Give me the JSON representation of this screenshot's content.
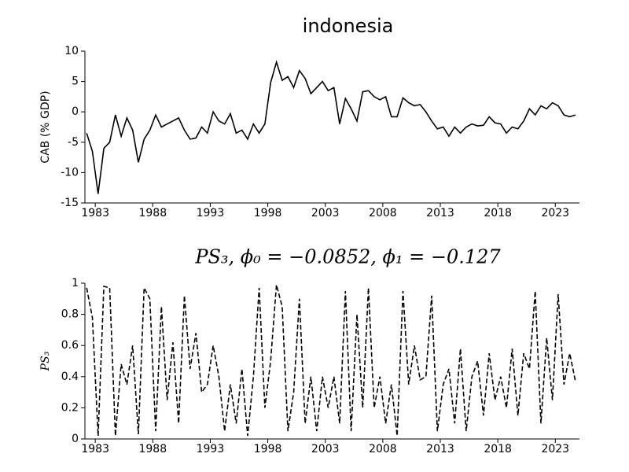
{
  "chart_data": [
    {
      "type": "line",
      "title": "indonesia",
      "ylabel": "CAB (% GDP)",
      "linestyle": "solid",
      "color": "#000000",
      "x": [
        1982.25,
        1982.75,
        1983.25,
        1983.75,
        1984.25,
        1984.75,
        1985.25,
        1985.75,
        1986.25,
        1986.75,
        1987.25,
        1987.75,
        1988.25,
        1988.75,
        1989.25,
        1989.75,
        1990.25,
        1990.75,
        1991.25,
        1991.75,
        1992.25,
        1992.75,
        1993.25,
        1993.75,
        1994.25,
        1994.75,
        1995.25,
        1995.75,
        1996.25,
        1996.75,
        1997.25,
        1997.75,
        1998.25,
        1998.75,
        1999.25,
        1999.75,
        2000.25,
        2000.75,
        2001.25,
        2001.75,
        2002.25,
        2002.75,
        2003.25,
        2003.75,
        2004.25,
        2004.75,
        2005.25,
        2005.75,
        2006.25,
        2006.75,
        2007.25,
        2007.75,
        2008.25,
        2008.75,
        2009.25,
        2009.75,
        2010.25,
        2010.75,
        2011.25,
        2011.75,
        2012.25,
        2012.75,
        2013.25,
        2013.75,
        2014.25,
        2014.75,
        2015.25,
        2015.75,
        2016.25,
        2016.75,
        2017.25,
        2017.75,
        2018.25,
        2018.75,
        2019.25,
        2019.75,
        2020.25,
        2020.75,
        2021.25,
        2021.75,
        2022.25,
        2022.75,
        2023.25,
        2023.75,
        2024.25,
        2024.75
      ],
      "values": [
        -3.5,
        -6.5,
        -13.5,
        -6,
        -5,
        -0.5,
        -4,
        -1,
        -3,
        -8.3,
        -4.5,
        -3,
        -0.5,
        -2.5,
        -2,
        -1.5,
        -1,
        -3,
        -4.5,
        -4.3,
        -2.5,
        -3.5,
        0,
        -1.5,
        -2,
        -0.3,
        -3.5,
        -3,
        -4.5,
        -2,
        -3.5,
        -2,
        4.8,
        8.2,
        5.2,
        5.8,
        4,
        6.8,
        5.5,
        3,
        4,
        5,
        3.5,
        4,
        -2,
        2.2,
        0.5,
        -1.5,
        3.3,
        3.5,
        2.5,
        2,
        2.5,
        -0.8,
        -0.8,
        2.3,
        1.5,
        1,
        1.2,
        0,
        -1.5,
        -2.8,
        -2.5,
        -4,
        -2.5,
        -3.5,
        -2.5,
        -2,
        -2.3,
        -2.2,
        -0.8,
        -1.8,
        -2,
        -3.5,
        -2.5,
        -2.8,
        -1.5,
        0.5,
        -0.5,
        1,
        0.5,
        1.5,
        1,
        -0.5,
        -0.8,
        -0.5
      ],
      "xlim": [
        1982.1,
        2025.1
      ],
      "xticks": [
        1983,
        1988,
        1993,
        1998,
        2003,
        2008,
        2013,
        2018,
        2023
      ],
      "ylim": [
        -15,
        10
      ],
      "yticks": [
        -15,
        -10,
        -5,
        0,
        5,
        10
      ]
    },
    {
      "type": "line",
      "title": "PS₃, ϕ₀ = −0.0852, ϕ₁ = −0.127",
      "ylabel": "PS₃",
      "linestyle": "dashed",
      "color": "#000000",
      "x": [
        1982.25,
        1982.75,
        1983.25,
        1983.75,
        1984.25,
        1984.75,
        1985.25,
        1985.75,
        1986.25,
        1986.75,
        1987.25,
        1987.75,
        1988.25,
        1988.75,
        1989.25,
        1989.75,
        1990.25,
        1990.75,
        1991.25,
        1991.75,
        1992.25,
        1992.75,
        1993.25,
        1993.75,
        1994.25,
        1994.75,
        1995.25,
        1995.75,
        1996.25,
        1996.75,
        1997.25,
        1997.75,
        1998.25,
        1998.75,
        1999.25,
        1999.75,
        2000.25,
        2000.75,
        2001.25,
        2001.75,
        2002.25,
        2002.75,
        2003.25,
        2003.75,
        2004.25,
        2004.75,
        2005.25,
        2005.75,
        2006.25,
        2006.75,
        2007.25,
        2007.75,
        2008.25,
        2008.75,
        2009.25,
        2009.75,
        2010.25,
        2010.75,
        2011.25,
        2011.75,
        2012.25,
        2012.75,
        2013.25,
        2013.75,
        2014.25,
        2014.75,
        2015.25,
        2015.75,
        2016.25,
        2016.75,
        2017.25,
        2017.75,
        2018.25,
        2018.75,
        2019.25,
        2019.75,
        2020.25,
        2020.75,
        2021.25,
        2021.75,
        2022.25,
        2022.75,
        2023.25,
        2023.75,
        2024.25,
        2024.75
      ],
      "values": [
        0.97,
        0.78,
        0.02,
        0.98,
        0.97,
        0.02,
        0.48,
        0.35,
        0.6,
        0.03,
        0.97,
        0.9,
        0.05,
        0.85,
        0.25,
        0.62,
        0.1,
        0.92,
        0.45,
        0.68,
        0.3,
        0.35,
        0.6,
        0.4,
        0.05,
        0.35,
        0.1,
        0.45,
        0.02,
        0.4,
        0.97,
        0.2,
        0.5,
        0.99,
        0.85,
        0.05,
        0.3,
        0.9,
        0.1,
        0.4,
        0.05,
        0.4,
        0.2,
        0.4,
        0.1,
        0.95,
        0.05,
        0.8,
        0.2,
        0.97,
        0.2,
        0.4,
        0.1,
        0.35,
        0.02,
        0.95,
        0.35,
        0.6,
        0.38,
        0.4,
        0.92,
        0.05,
        0.35,
        0.45,
        0.1,
        0.58,
        0.05,
        0.4,
        0.5,
        0.15,
        0.55,
        0.25,
        0.4,
        0.2,
        0.58,
        0.15,
        0.55,
        0.45,
        0.95,
        0.1,
        0.65,
        0.25,
        0.93,
        0.35,
        0.55,
        0.37
      ],
      "xlim": [
        1982.1,
        2025.1
      ],
      "xticks": [
        1983,
        1988,
        1993,
        1998,
        2003,
        2008,
        2013,
        2018,
        2023
      ],
      "ylim": [
        0,
        1
      ],
      "yticks": [
        0,
        0.2,
        0.4,
        0.6,
        0.8,
        1
      ]
    }
  ]
}
